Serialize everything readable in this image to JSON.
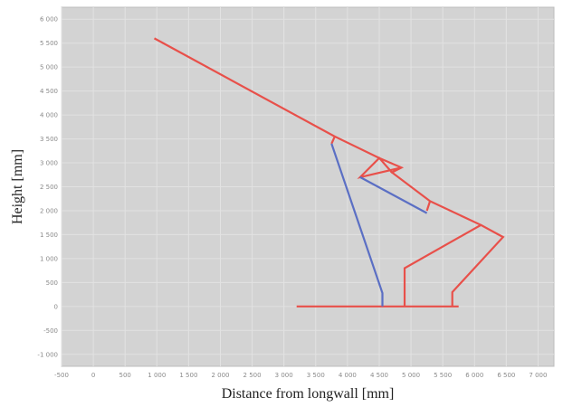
{
  "chart_data": {
    "type": "line",
    "xlabel": "Distance from longwall [mm]",
    "ylabel": "Height [mm]",
    "xlim": [
      -500,
      7250
    ],
    "ylim": [
      -1250,
      6250
    ],
    "xticks": [
      -500,
      0,
      500,
      1000,
      1500,
      2000,
      2500,
      3000,
      3500,
      4000,
      4500,
      5000,
      5500,
      6000,
      6500,
      7000
    ],
    "yticks": [
      -1000,
      -500,
      0,
      500,
      1000,
      1500,
      2000,
      2500,
      3000,
      3500,
      4000,
      4500,
      5000,
      5500,
      6000
    ],
    "tick_labels_x": [
      "-500",
      "0",
      "500",
      "1 000",
      "1 500",
      "2 000",
      "2 500",
      "3 000",
      "3 500",
      "4 000",
      "4 500",
      "5 000",
      "5 500",
      "6 000",
      "6 500",
      "7 000"
    ],
    "tick_labels_y": [
      "-1 000",
      "-500",
      "0",
      "500",
      "1 000",
      "1 500",
      "2 000",
      "2 500",
      "3 000",
      "3 500",
      "4 000",
      "4 500",
      "5 000",
      "5 500",
      "6 000"
    ],
    "grid": true,
    "plot_background": "#d3d3d3",
    "grid_color": "#e2e2e2",
    "series": [
      {
        "color": "#e8504a",
        "points": [
          [
            960,
            5600
          ],
          [
            3800,
            3550
          ],
          [
            3750,
            3400
          ],
          [
            3800,
            3550
          ],
          [
            4500,
            3100
          ],
          [
            4850,
            2900
          ],
          [
            4700,
            2800
          ],
          [
            4500,
            3100
          ],
          [
            4200,
            2700
          ],
          [
            4850,
            2900
          ],
          [
            4700,
            2800
          ],
          [
            5300,
            2200
          ],
          [
            5250,
            2000
          ],
          [
            5300,
            2200
          ],
          [
            6100,
            1700
          ],
          [
            4900,
            800
          ],
          [
            4900,
            0
          ],
          [
            4900,
            800
          ],
          [
            6100,
            1700
          ],
          [
            6450,
            1450
          ],
          [
            5650,
            300
          ],
          [
            5650,
            0
          ]
        ]
      },
      {
        "color": "#e8504a",
        "points": [
          [
            3200,
            0
          ],
          [
            5750,
            0
          ]
        ]
      },
      {
        "color": "#5b6fc4",
        "points": [
          [
            3750,
            3400
          ],
          [
            4550,
            280
          ],
          [
            4550,
            0
          ]
        ]
      },
      {
        "color": "#5b6fc4",
        "points": [
          [
            4200,
            2700
          ],
          [
            5250,
            1950
          ]
        ]
      }
    ]
  }
}
